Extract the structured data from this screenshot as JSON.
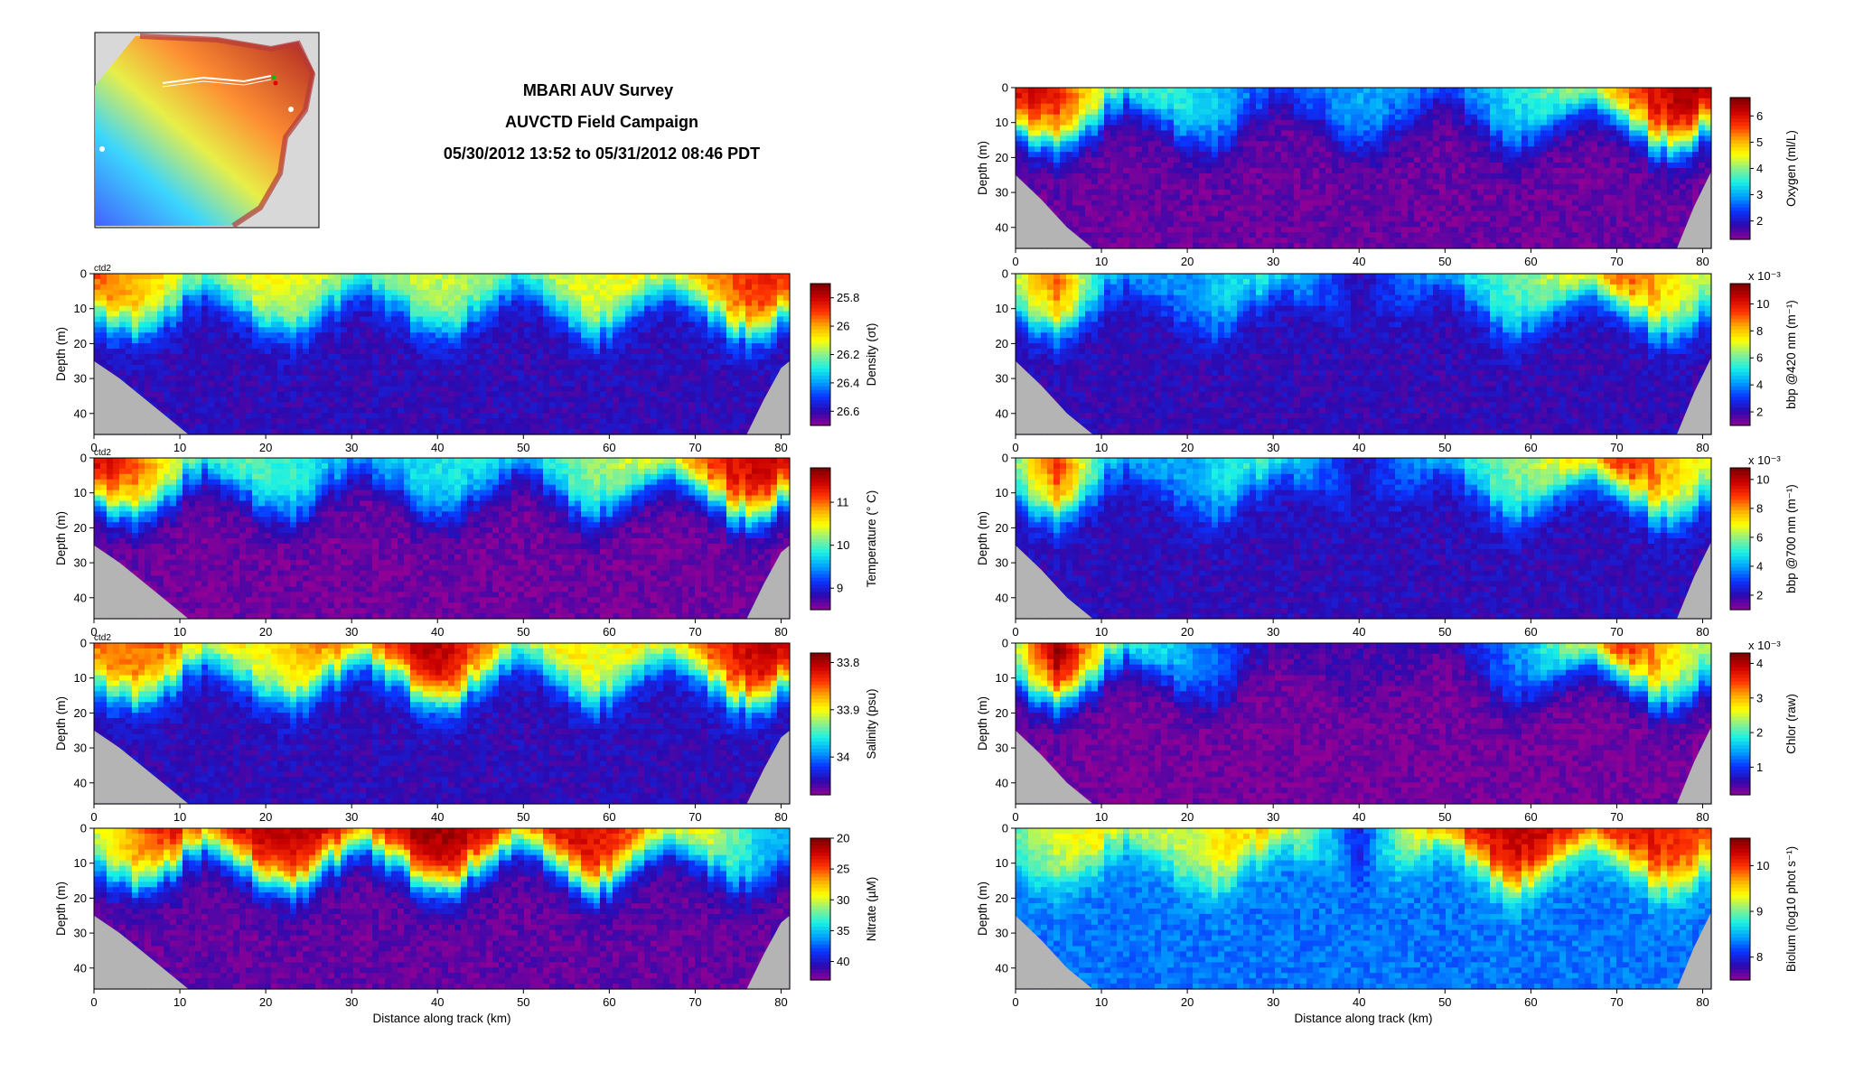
{
  "header": {
    "title": "MBARI AUV Survey",
    "subtitle": "AUVCTD Field Campaign",
    "time_range": "05/30/2012 13:52 to 05/31/2012 08:46 PDT"
  },
  "colors": {
    "bathymetry": "#b4b4b4",
    "jet_stops": [
      "#8e0096",
      "#2a0ab0",
      "#0a34ff",
      "#00a0ff",
      "#18f0e6",
      "#8cf08c",
      "#ffff00",
      "#ffaa00",
      "#ff3200",
      "#c80000",
      "#780000"
    ]
  },
  "chart_data": [
    {
      "type": "heatmap",
      "id": "density",
      "title": "",
      "platform_label": "ctd2",
      "xlabel": "",
      "ylabel": "Depth (m)",
      "xlim": [
        0,
        81
      ],
      "ylim": [
        46,
        0
      ],
      "xticks": [
        "0",
        "10",
        "20",
        "30",
        "40",
        "50",
        "60",
        "70",
        "80"
      ],
      "yticks": [
        "0",
        "10",
        "20",
        "30",
        "40"
      ],
      "colorbar_label": "Density (σt)",
      "colorbar_ticks": [
        "25.8",
        "26",
        "26.2",
        "26.4",
        "26.6"
      ],
      "colorbar_range": [
        25.7,
        26.7
      ],
      "colorbar_reversed": true,
      "exponent_label": "",
      "section_profile": {
        "x": [
          0,
          10,
          20,
          30,
          40,
          50,
          60,
          70,
          78
        ],
        "surface_value": [
          25.9,
          26.1,
          26.1,
          26.15,
          26.15,
          26.15,
          26.1,
          26.0,
          25.85
        ],
        "bottom_value": 26.6
      },
      "bathymetry_left_x": [
        0,
        3,
        6,
        9,
        11
      ],
      "bathymetry_left_depth": [
        25,
        30,
        36,
        42,
        46
      ],
      "bathymetry_right_x": [
        76,
        78,
        80,
        81
      ],
      "bathymetry_right_depth": [
        46,
        36,
        27,
        25
      ]
    },
    {
      "type": "heatmap",
      "id": "temperature",
      "title": "",
      "platform_label": "ctd2",
      "xlabel": "",
      "ylabel": "Depth (m)",
      "xlim": [
        0,
        81
      ],
      "ylim": [
        46,
        0
      ],
      "xticks": [
        "0",
        "10",
        "20",
        "30",
        "40",
        "50",
        "60",
        "70",
        "80"
      ],
      "yticks": [
        "0",
        "10",
        "20",
        "30",
        "40"
      ],
      "colorbar_label": "Temperature (° C)",
      "colorbar_ticks": [
        "11",
        "10",
        "9"
      ],
      "colorbar_range": [
        8.5,
        11.8
      ],
      "colorbar_reversed": false,
      "exponent_label": "",
      "section_profile": {
        "x": [
          0,
          5,
          10,
          20,
          30,
          40,
          50,
          60,
          70,
          78
        ],
        "surface_value": [
          11.6,
          11.0,
          10.4,
          10.0,
          9.7,
          9.8,
          9.9,
          10.2,
          11.2,
          11.5
        ],
        "bottom_value": 8.6
      },
      "bathymetry_left_x": [
        0,
        3,
        6,
        9,
        11
      ],
      "bathymetry_left_depth": [
        25,
        30,
        36,
        42,
        46
      ],
      "bathymetry_right_x": [
        76,
        78,
        80,
        81
      ],
      "bathymetry_right_depth": [
        46,
        36,
        27,
        25
      ]
    },
    {
      "type": "heatmap",
      "id": "salinity",
      "title": "",
      "platform_label": "ctd2",
      "xlabel": "",
      "ylabel": "Depth (m)",
      "xlim": [
        0,
        81
      ],
      "ylim": [
        46,
        0
      ],
      "xticks": [
        "0",
        "10",
        "20",
        "30",
        "40",
        "50",
        "60",
        "70",
        "80"
      ],
      "yticks": [
        "0",
        "10",
        "20",
        "30",
        "40"
      ],
      "colorbar_label": "Salinity (psu)",
      "colorbar_ticks": [
        "33.8",
        "33.9",
        "34"
      ],
      "colorbar_range": [
        33.78,
        34.08
      ],
      "colorbar_reversed": true,
      "exponent_label": "",
      "section_profile": {
        "x": [
          0,
          10,
          20,
          30,
          40,
          50,
          60,
          70,
          78
        ],
        "surface_value": [
          33.85,
          33.85,
          33.9,
          33.83,
          33.8,
          33.88,
          33.9,
          33.85,
          33.8
        ],
        "bottom_value": 34.05
      },
      "bathymetry_left_x": [
        0,
        3,
        6,
        9,
        11
      ],
      "bathymetry_left_depth": [
        25,
        30,
        36,
        42,
        46
      ],
      "bathymetry_right_x": [
        76,
        78,
        80,
        81
      ],
      "bathymetry_right_depth": [
        46,
        36,
        27,
        25
      ]
    },
    {
      "type": "heatmap",
      "id": "nitrate",
      "title": "",
      "platform_label": "",
      "xlabel": "Distance along track (km)",
      "ylabel": "Depth (m)",
      "xlim": [
        0,
        81
      ],
      "ylim": [
        46,
        0
      ],
      "xticks": [
        "0",
        "10",
        "20",
        "30",
        "40",
        "50",
        "60",
        "70",
        "80"
      ],
      "yticks": [
        "0",
        "10",
        "20",
        "30",
        "40"
      ],
      "colorbar_label": "Nitrate (µM)",
      "colorbar_ticks": [
        "20",
        "25",
        "30",
        "35",
        "40"
      ],
      "colorbar_range": [
        20,
        43
      ],
      "colorbar_reversed": true,
      "exponent_label": "",
      "section_profile": {
        "x": [
          0,
          10,
          20,
          30,
          40,
          50,
          60,
          70,
          78
        ],
        "surface_value": [
          30,
          22,
          22,
          22,
          21,
          22,
          23,
          28,
          35
        ],
        "bottom_value": 42
      },
      "bathymetry_left_x": [
        0,
        3,
        6,
        9,
        11
      ],
      "bathymetry_left_depth": [
        25,
        30,
        36,
        42,
        46
      ],
      "bathymetry_right_x": [
        76,
        78,
        80,
        81
      ],
      "bathymetry_right_depth": [
        46,
        36,
        27,
        25
      ]
    },
    {
      "type": "heatmap",
      "id": "oxygen",
      "title": "",
      "platform_label": "",
      "xlabel": "",
      "ylabel": "Depth (m)",
      "xlim": [
        0,
        81
      ],
      "ylim": [
        46,
        0
      ],
      "xticks": [
        "0",
        "10",
        "20",
        "30",
        "40",
        "50",
        "60",
        "70",
        "80"
      ],
      "yticks": [
        "0",
        "10",
        "20",
        "30",
        "40"
      ],
      "colorbar_label": "Oxygen (ml/L)",
      "colorbar_ticks": [
        "6",
        "5",
        "4",
        "3",
        "2"
      ],
      "colorbar_range": [
        1.3,
        6.7
      ],
      "colorbar_reversed": false,
      "exponent_label": "",
      "section_profile": {
        "x": [
          0,
          5,
          10,
          20,
          30,
          40,
          50,
          60,
          70,
          78
        ],
        "surface_value": [
          6.3,
          5.8,
          4.5,
          3.5,
          2.6,
          3.0,
          2.8,
          3.5,
          5.5,
          6.4
        ],
        "bottom_value": 1.5
      },
      "bathymetry_left_x": [
        0,
        3,
        6,
        9
      ],
      "bathymetry_left_depth": [
        25,
        32,
        40,
        46
      ],
      "bathymetry_right_x": [
        77,
        79,
        81
      ],
      "bathymetry_right_depth": [
        46,
        34,
        24
      ]
    },
    {
      "type": "heatmap",
      "id": "bbp420",
      "title": "",
      "platform_label": "",
      "xlabel": "",
      "ylabel": "",
      "xlim": [
        0,
        81
      ],
      "ylim": [
        46,
        0
      ],
      "xticks": [
        "0",
        "10",
        "20",
        "30",
        "40",
        "50",
        "60",
        "70",
        "80"
      ],
      "yticks": [
        "0",
        "10",
        "20",
        "30",
        "40"
      ],
      "colorbar_label": "bbp @420 nm (m⁻¹)",
      "colorbar_ticks": [
        "10",
        "8",
        "6",
        "4",
        "2"
      ],
      "colorbar_range": [
        1,
        11.5
      ],
      "colorbar_reversed": false,
      "exponent_label": "x 10⁻³",
      "section_profile": {
        "x": [
          0,
          5,
          10,
          20,
          30,
          40,
          50,
          60,
          70,
          78
        ],
        "surface_value": [
          7,
          9,
          5,
          4,
          6,
          2,
          5,
          6,
          10,
          7
        ],
        "bottom_value": 2
      },
      "bathymetry_left_x": [
        0,
        3,
        6,
        9
      ],
      "bathymetry_left_depth": [
        25,
        32,
        40,
        46
      ],
      "bathymetry_right_x": [
        77,
        79,
        81
      ],
      "bathymetry_right_depth": [
        46,
        34,
        24
      ]
    },
    {
      "type": "heatmap",
      "id": "bbp700",
      "title": "",
      "platform_label": "",
      "xlabel": "",
      "ylabel": "Depth (m)",
      "xlim": [
        0,
        81
      ],
      "ylim": [
        46,
        0
      ],
      "xticks": [
        "0",
        "10",
        "20",
        "30",
        "40",
        "50",
        "60",
        "70",
        "80"
      ],
      "yticks": [
        "0",
        "10",
        "20",
        "30",
        "40"
      ],
      "colorbar_label": "bbp @700 nm (m⁻¹)",
      "colorbar_ticks": [
        "10",
        "8",
        "6",
        "4",
        "2"
      ],
      "colorbar_range": [
        1,
        10.8
      ],
      "colorbar_reversed": false,
      "exponent_label": "x 10⁻³",
      "section_profile": {
        "x": [
          0,
          5,
          10,
          20,
          30,
          40,
          50,
          60,
          70,
          78
        ],
        "surface_value": [
          6,
          9,
          5,
          4,
          6,
          2,
          5,
          6,
          10,
          7
        ],
        "bottom_value": 2
      },
      "bathymetry_left_x": [
        0,
        3,
        6,
        9
      ],
      "bathymetry_left_depth": [
        25,
        32,
        40,
        46
      ],
      "bathymetry_right_x": [
        77,
        79,
        81
      ],
      "bathymetry_right_depth": [
        46,
        34,
        24
      ]
    },
    {
      "type": "heatmap",
      "id": "chlor",
      "title": "",
      "platform_label": "",
      "xlabel": "",
      "ylabel": "Depth (m)",
      "xlim": [
        0,
        81
      ],
      "ylim": [
        46,
        0
      ],
      "xticks": [
        "0",
        "10",
        "20",
        "30",
        "40",
        "50",
        "60",
        "70",
        "80"
      ],
      "yticks": [
        "0",
        "10",
        "20",
        "30",
        "40"
      ],
      "colorbar_label": "Chlor (raw)",
      "colorbar_ticks": [
        "4",
        "3",
        "2",
        "1"
      ],
      "colorbar_range": [
        0.2,
        4.3
      ],
      "colorbar_reversed": false,
      "exponent_label": "x 10⁻³",
      "section_profile": {
        "x": [
          0,
          5,
          10,
          20,
          30,
          40,
          50,
          60,
          70,
          78
        ],
        "surface_value": [
          2.5,
          4.2,
          2.8,
          1.5,
          0.6,
          0.5,
          0.6,
          1.5,
          4.0,
          2.5
        ],
        "bottom_value": 0.3
      },
      "bathymetry_left_x": [
        0,
        3,
        6,
        9
      ],
      "bathymetry_left_depth": [
        25,
        32,
        40,
        46
      ],
      "bathymetry_right_x": [
        77,
        79,
        81
      ],
      "bathymetry_right_depth": [
        46,
        34,
        24
      ]
    },
    {
      "type": "heatmap",
      "id": "biolum",
      "title": "",
      "platform_label": "",
      "xlabel": "Distance along track (km)",
      "ylabel": "Depth (m)",
      "xlim": [
        0,
        81
      ],
      "ylim": [
        46,
        0
      ],
      "xticks": [
        "0",
        "10",
        "20",
        "30",
        "40",
        "50",
        "60",
        "70",
        "80"
      ],
      "yticks": [
        "0",
        "10",
        "20",
        "30",
        "40"
      ],
      "colorbar_label": "Biolum (log10 phot s⁻¹)",
      "colorbar_ticks": [
        "10",
        "9",
        "8"
      ],
      "colorbar_range": [
        7.5,
        10.6
      ],
      "colorbar_reversed": false,
      "exponent_label": "",
      "section_profile": {
        "x": [
          0,
          10,
          20,
          30,
          40,
          50,
          60,
          70,
          78
        ],
        "surface_value": [
          9.0,
          9.5,
          9.2,
          9.8,
          8.0,
          10.2,
          10.3,
          10.3,
          10.0
        ],
        "bottom_value": 8.3
      },
      "bathymetry_left_x": [
        0,
        3,
        6,
        9
      ],
      "bathymetry_left_depth": [
        25,
        32,
        40,
        46
      ],
      "bathymetry_right_x": [
        77,
        79,
        81
      ],
      "bathymetry_right_depth": [
        46,
        34,
        24
      ]
    }
  ]
}
